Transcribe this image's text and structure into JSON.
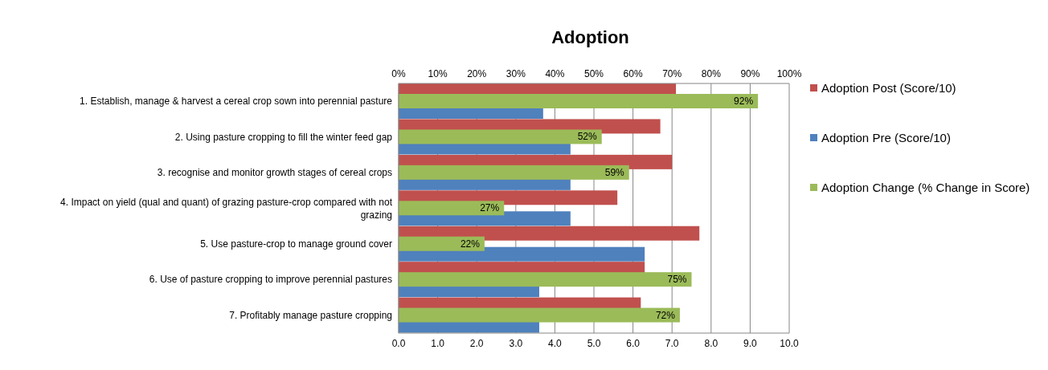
{
  "chart_data": {
    "type": "bar",
    "orientation": "horizontal",
    "title": "Adoption",
    "categories": [
      "1. Establish, manage & harvest a cereal crop sown into perennial pasture",
      "2. Using pasture cropping to fill the winter feed gap",
      "3. recognise and monitor growth stages of cereal crops",
      "4. Impact on yield (qual and quant) of grazing pasture-crop compared with not grazing",
      "5. Use pasture-crop to manage ground cover",
      "6. Use of pasture cropping to improve perennial pastures",
      "7. Profitably manage pasture cropping"
    ],
    "series": [
      {
        "name": "Adoption Post (Score/10)",
        "color": "#c0504d",
        "values": [
          7.1,
          6.7,
          7.0,
          5.6,
          7.7,
          6.3,
          6.2
        ]
      },
      {
        "name": "Adoption Pre (Score/10)",
        "color": "#4f81bd",
        "values": [
          3.7,
          4.4,
          4.4,
          4.4,
          6.3,
          3.6,
          3.6
        ]
      },
      {
        "name": "Adoption Change (% Change in Score)",
        "color": "#9bbb59",
        "axis": "x2",
        "values": [
          92,
          52,
          59,
          27,
          22,
          75,
          72
        ],
        "value_labels": [
          "92%",
          "52%",
          "59%",
          "27%",
          "22%",
          "75%",
          "72%"
        ]
      }
    ],
    "xlim": [
      0,
      10
    ],
    "xticks": [
      {
        "value": 0,
        "label": "0.0"
      },
      {
        "value": 1,
        "label": "1.0"
      },
      {
        "value": 2,
        "label": "2.0"
      },
      {
        "value": 3,
        "label": "3.0"
      },
      {
        "value": 4,
        "label": "4.0"
      },
      {
        "value": 5,
        "label": "5.0"
      },
      {
        "value": 6,
        "label": "6.0"
      },
      {
        "value": 7,
        "label": "7.0"
      },
      {
        "value": 8,
        "label": "8.0"
      },
      {
        "value": 9,
        "label": "9.0"
      },
      {
        "value": 10,
        "label": "10.0"
      }
    ],
    "x2lim": [
      0,
      100
    ],
    "x2ticks": [
      {
        "value": 0,
        "label": "0%"
      },
      {
        "value": 10,
        "label": "10%"
      },
      {
        "value": 20,
        "label": "20%"
      },
      {
        "value": 30,
        "label": "30%"
      },
      {
        "value": 40,
        "label": "40%"
      },
      {
        "value": 50,
        "label": "50%"
      },
      {
        "value": 60,
        "label": "60%"
      },
      {
        "value": 70,
        "label": "70%"
      },
      {
        "value": 80,
        "label": "80%"
      },
      {
        "value": 90,
        "label": "90%"
      },
      {
        "value": 100,
        "label": "100%"
      }
    ],
    "grid": "x",
    "legend": "right"
  }
}
